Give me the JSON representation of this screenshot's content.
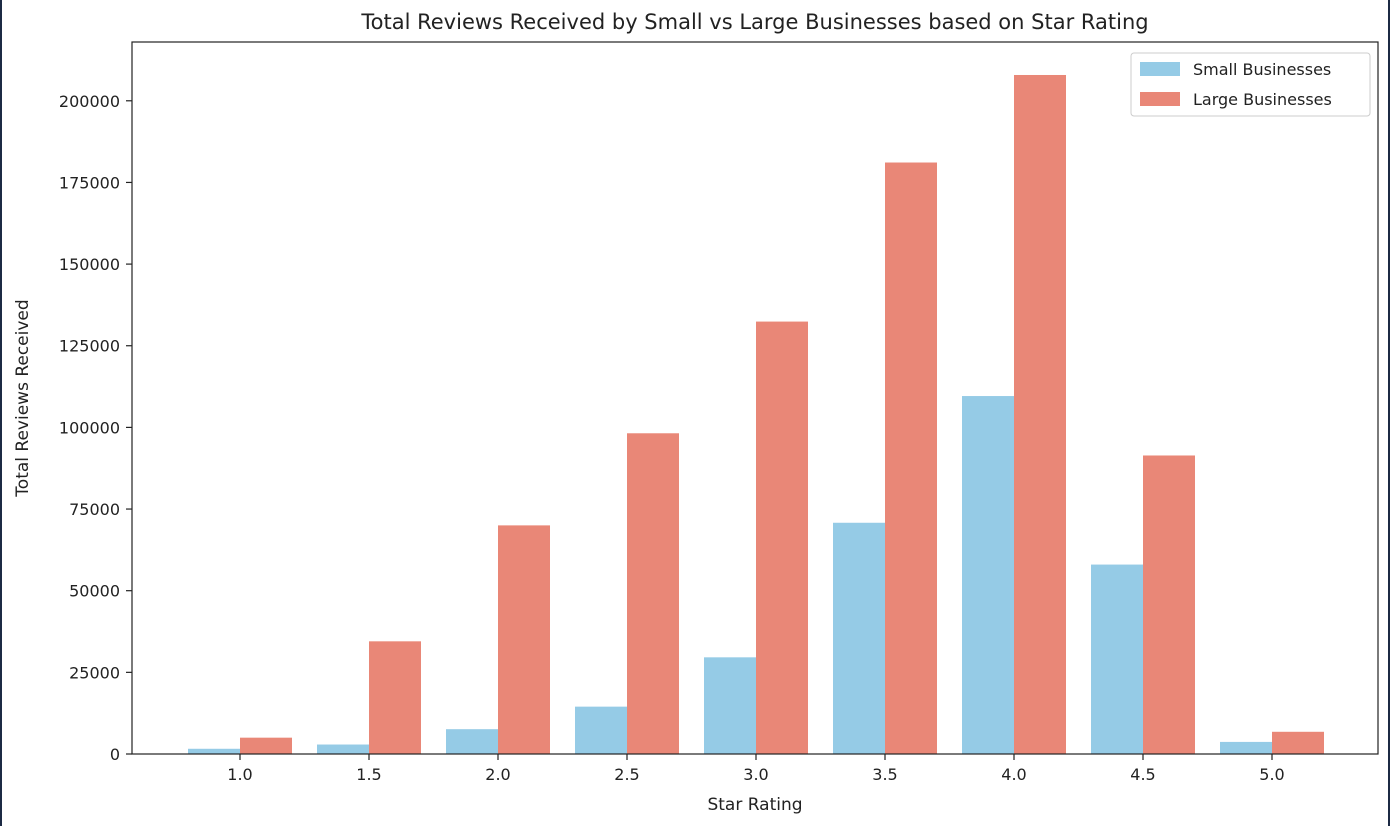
{
  "chart_data": {
    "type": "bar",
    "title": "Total Reviews Received by Small vs Large Businesses based on Star Rating",
    "xlabel": "Star Rating",
    "ylabel": "Total Reviews Received",
    "categories": [
      "1.0",
      "1.5",
      "2.0",
      "2.5",
      "3.0",
      "3.5",
      "4.0",
      "4.5",
      "5.0"
    ],
    "series": [
      {
        "name": "Small Businesses",
        "color": "#95cbe6",
        "values": [
          1600,
          2900,
          7600,
          14500,
          29600,
          70800,
          109600,
          58000,
          3700
        ]
      },
      {
        "name": "Large Businesses",
        "color": "#e98777",
        "values": [
          5000,
          34500,
          70000,
          98200,
          132400,
          181100,
          207900,
          91400,
          6800
        ]
      }
    ],
    "yticks": [
      0,
      25000,
      50000,
      75000,
      100000,
      125000,
      150000,
      175000,
      200000
    ],
    "ylim": [
      0,
      218000
    ],
    "legend_position": "top-right",
    "grid": false
  }
}
